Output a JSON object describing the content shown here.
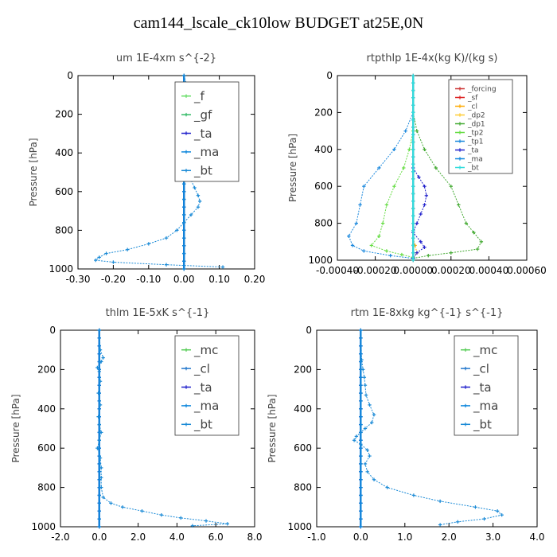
{
  "figure_title": "cam144_lscale_ck10low  BUDGET at25E,0N",
  "chart_data": [
    {
      "type": "line",
      "title": "um   1E-4xm  s^{-2}",
      "ylabel": "Pressure [hPa]",
      "xlim": [
        -0.3,
        0.2
      ],
      "ylim": [
        1000,
        0
      ],
      "xticks": [
        "-0.30",
        "-0.20",
        "-0.10",
        "0.00",
        "0.10",
        "0.20"
      ],
      "xtick_values": [
        -0.3,
        -0.2,
        -0.1,
        0.0,
        0.1,
        0.2
      ],
      "yticks": [
        "0",
        "200",
        "400",
        "600",
        "800",
        "1000"
      ],
      "ytick_values": [
        0,
        200,
        400,
        600,
        800,
        1000
      ],
      "legend_size": 15,
      "series": [
        {
          "name": "_f",
          "color": "#66dd66",
          "pressure": [
            0,
            1000
          ],
          "values": [
            0.0,
            0.0
          ]
        },
        {
          "name": "_gf",
          "color": "#33bb66",
          "pressure": [
            0,
            1000
          ],
          "values": [
            0.0,
            0.0
          ]
        },
        {
          "name": "_ta",
          "color": "#2222cc",
          "pressure": [
            0,
            1000
          ],
          "values": [
            0.0,
            0.0
          ]
        },
        {
          "name": "_ma",
          "color": "#1188dd",
          "pressure": [
            0,
            1000
          ],
          "values": [
            0.0,
            0.0
          ]
        },
        {
          "name": "_bt",
          "color": "#1a8ad6",
          "pressure": [
            0,
            60,
            90,
            115,
            130,
            145,
            165,
            190,
            215,
            245,
            290,
            340,
            380,
            420,
            460,
            500,
            540,
            580,
            620,
            650,
            680,
            720,
            760,
            800,
            840,
            870,
            900,
            920,
            940,
            955,
            965,
            978,
            990
          ],
          "values": [
            0.0,
            0.01,
            0.02,
            0.025,
            0.01,
            0.0,
            -0.01,
            -0.015,
            -0.01,
            0.0,
            0.01,
            0.005,
            0.0,
            0.0,
            0.005,
            0.01,
            0.02,
            0.03,
            0.04,
            0.045,
            0.04,
            0.02,
            0.0,
            -0.02,
            -0.05,
            -0.1,
            -0.16,
            -0.22,
            -0.24,
            -0.25,
            -0.2,
            -0.05,
            0.11
          ]
        }
      ]
    },
    {
      "type": "line",
      "title": "rtpthlp   1E-4x(kg K)/(kg s)",
      "ylabel": "Pressure [hPa]",
      "xlim": [
        -0.0004,
        0.0006
      ],
      "ylim": [
        1000,
        0
      ],
      "xticks": [
        "-0.00040",
        "-0.00020",
        "0.00000",
        "0.00020",
        "0.00040",
        "0.00060"
      ],
      "xtick_values": [
        -0.0004,
        -0.0002,
        0.0,
        0.0002,
        0.0004,
        0.0006
      ],
      "yticks": [
        "0",
        "200",
        "400",
        "600",
        "800",
        "1000"
      ],
      "ytick_values": [
        0,
        200,
        400,
        600,
        800,
        1000
      ],
      "legend_size": 9,
      "series": [
        {
          "name": "_forcing",
          "color": "#cc3333",
          "pressure": [
            0,
            1000
          ],
          "values": [
            0.0,
            0.0
          ]
        },
        {
          "name": "_sf",
          "color": "#dd2222",
          "pressure": [
            0,
            1000
          ],
          "values": [
            0.0,
            0.0
          ]
        },
        {
          "name": "_cl",
          "color": "#ffaa00",
          "pressure": [
            880,
            920,
            960,
            990
          ],
          "values": [
            0.0,
            1e-05,
            2e-05,
            0.0
          ]
        },
        {
          "name": "_dp2",
          "color": "#ffcc33",
          "pressure": [
            0,
            1000
          ],
          "values": [
            0.0,
            0.0
          ]
        },
        {
          "name": "_dp1",
          "color": "#44aa33",
          "pressure": [
            200,
            300,
            400,
            500,
            600,
            700,
            800,
            850,
            900,
            940,
            960,
            975,
            990
          ],
          "values": [
            0.0,
            2e-05,
            6e-05,
            0.00012,
            0.0002,
            0.00024,
            0.00028,
            0.00032,
            0.00036,
            0.00034,
            0.0002,
            8e-05,
            0.0
          ]
        },
        {
          "name": "_tp2",
          "color": "#66dd44",
          "pressure": [
            300,
            400,
            500,
            600,
            700,
            800,
            870,
            920,
            950,
            970,
            985
          ],
          "values": [
            0.0,
            -2e-05,
            -5e-05,
            -0.0001,
            -0.00014,
            -0.00016,
            -0.00018,
            -0.00022,
            -0.00014,
            -6e-05,
            0.0
          ]
        },
        {
          "name": "_tp1",
          "color": "#1a88dd",
          "pressure": [
            200,
            300,
            400,
            500,
            600,
            700,
            800,
            870,
            920,
            950,
            975,
            990
          ],
          "values": [
            0.0,
            -4e-05,
            -0.0001,
            -0.00018,
            -0.00026,
            -0.00028,
            -0.0003,
            -0.00034,
            -0.00032,
            -0.00026,
            -0.00012,
            0.0
          ]
        },
        {
          "name": "_ta",
          "color": "#2222cc",
          "pressure": [
            500,
            550,
            600,
            650,
            700,
            750,
            800,
            850,
            900,
            930,
            960,
            990
          ],
          "values": [
            0.0,
            3e-05,
            6e-05,
            7e-05,
            6e-05,
            4e-05,
            2e-05,
            0.0,
            4e-05,
            6e-05,
            2e-05,
            0.0
          ]
        },
        {
          "name": "_ma",
          "color": "#1188dd",
          "pressure": [
            0,
            1000
          ],
          "values": [
            0.0,
            0.0
          ]
        },
        {
          "name": "_bt",
          "color": "#33dddd",
          "pressure": [
            0,
            1000
          ],
          "values": [
            0.0,
            0.0
          ]
        }
      ]
    },
    {
      "type": "line",
      "title": "thlm   1E-5xK  s^{-1}",
      "ylabel": "Pressure [hPa]",
      "xlim": [
        -2.0,
        8.0
      ],
      "ylim": [
        1000,
        0
      ],
      "xticks": [
        "-2.0",
        "0.0",
        "2.0",
        "4.0",
        "6.0",
        "8.0"
      ],
      "xtick_values": [
        -2.0,
        0.0,
        2.0,
        4.0,
        6.0,
        8.0
      ],
      "yticks": [
        "0",
        "200",
        "400",
        "600",
        "800",
        "1000"
      ],
      "ytick_values": [
        0,
        200,
        400,
        600,
        800,
        1000
      ],
      "legend_size": 15,
      "series": [
        {
          "name": "_mc",
          "color": "#55cc55",
          "pressure": [
            0,
            1000
          ],
          "values": [
            0.0,
            0.0
          ]
        },
        {
          "name": "_cl",
          "color": "#2277cc",
          "pressure": [
            0,
            1000
          ],
          "values": [
            0.0,
            0.0
          ]
        },
        {
          "name": "_ta",
          "color": "#2222cc",
          "pressure": [
            0,
            1000
          ],
          "values": [
            0.0,
            0.0
          ]
        },
        {
          "name": "_ma",
          "color": "#1188dd",
          "pressure": [
            0,
            1000
          ],
          "values": [
            0.0,
            0.0
          ]
        },
        {
          "name": "_bt",
          "color": "#1a8ad6",
          "pressure": [
            0,
            100,
            140,
            160,
            190,
            210,
            260,
            320,
            380,
            440,
            480,
            520,
            560,
            600,
            650,
            700,
            750,
            800,
            850,
            880,
            900,
            920,
            940,
            955,
            970,
            985,
            995
          ],
          "values": [
            0.0,
            0.05,
            0.2,
            0.1,
            -0.1,
            0.0,
            0.05,
            -0.05,
            0.05,
            -0.05,
            0.0,
            0.1,
            0.0,
            -0.1,
            0.05,
            0.1,
            0.1,
            0.1,
            0.2,
            0.6,
            1.2,
            2.2,
            3.2,
            4.2,
            5.5,
            6.6,
            4.8
          ]
        }
      ]
    },
    {
      "type": "line",
      "title": "rtm   1E-8xkg  kg^{-1} s^{-1}",
      "ylabel": "Pressure [hPa]",
      "xlim": [
        -1.0,
        4.0
      ],
      "ylim": [
        1000,
        0
      ],
      "xticks": [
        "-1.0",
        "0.0",
        "1.0",
        "2.0",
        "3.0",
        "4.0"
      ],
      "xtick_values": [
        -1.0,
        0.0,
        1.0,
        2.0,
        3.0,
        4.0
      ],
      "yticks": [
        "0",
        "200",
        "400",
        "600",
        "800",
        "1000"
      ],
      "ytick_values": [
        0,
        200,
        400,
        600,
        800,
        1000
      ],
      "legend_size": 15,
      "series": [
        {
          "name": "_mc",
          "color": "#55cc55",
          "pressure": [
            0,
            1000
          ],
          "values": [
            0.0,
            0.0
          ]
        },
        {
          "name": "_cl",
          "color": "#2277cc",
          "pressure": [
            0,
            1000
          ],
          "values": [
            0.0,
            0.0
          ]
        },
        {
          "name": "_ta",
          "color": "#2222cc",
          "pressure": [
            0,
            1000
          ],
          "values": [
            0.0,
            0.0
          ]
        },
        {
          "name": "_ma",
          "color": "#1188dd",
          "pressure": [
            0,
            1000
          ],
          "values": [
            0.0,
            0.0
          ]
        },
        {
          "name": "_bt",
          "color": "#1a8ad6",
          "pressure": [
            0,
            150,
            200,
            240,
            280,
            330,
            380,
            430,
            470,
            500,
            540,
            560,
            580,
            610,
            640,
            680,
            720,
            760,
            800,
            840,
            870,
            900,
            920,
            940,
            960,
            975,
            990
          ],
          "values": [
            0.0,
            0.02,
            0.05,
            0.08,
            0.1,
            0.12,
            0.2,
            0.3,
            0.25,
            0.1,
            -0.1,
            -0.15,
            0.0,
            0.15,
            0.2,
            0.1,
            0.15,
            0.3,
            0.6,
            1.2,
            1.8,
            2.6,
            3.1,
            3.2,
            2.8,
            2.2,
            1.8
          ]
        }
      ]
    }
  ]
}
